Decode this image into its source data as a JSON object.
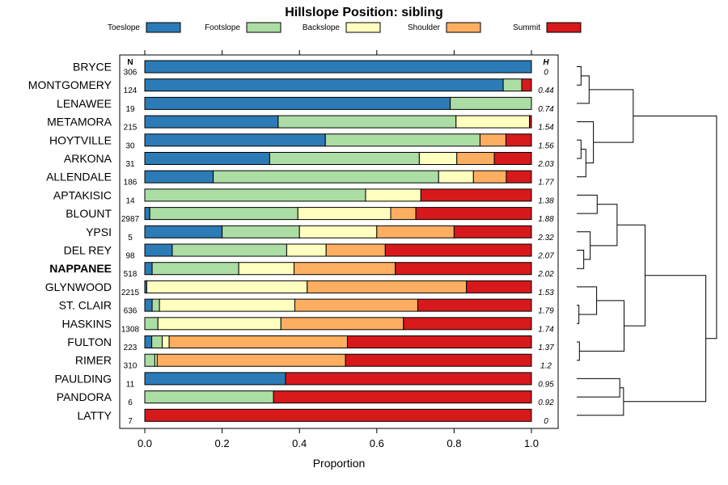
{
  "chart_data": {
    "type": "bar",
    "stacked": true,
    "orientation": "horizontal",
    "title": "Hillslope Position: sibling",
    "xlabel": "Proportion",
    "xlim": [
      0,
      1
    ],
    "xticks": [
      0.0,
      0.2,
      0.4,
      0.6,
      0.8,
      1.0
    ],
    "xtick_labels": [
      "0.0",
      "0.2",
      "0.4",
      "0.6",
      "0.8",
      "1.0"
    ],
    "n_header": "N",
    "h_header": "H",
    "legend": [
      {
        "name": "Toeslope",
        "color": "#2C7BB6"
      },
      {
        "name": "Footslope",
        "color": "#ABDDA4"
      },
      {
        "name": "Backslope",
        "color": "#FFFFBF"
      },
      {
        "name": "Shoulder",
        "color": "#FDAE61"
      },
      {
        "name": "Summit",
        "color": "#D7191C"
      }
    ],
    "rows": [
      {
        "name": "BRYCE",
        "n": "306",
        "h": "0",
        "bold": false,
        "values": [
          1.0,
          0,
          0,
          0,
          0
        ]
      },
      {
        "name": "MONTGOMERY",
        "n": "124",
        "h": "0.44",
        "bold": false,
        "values": [
          0.927,
          0.048,
          0,
          0,
          0.025
        ]
      },
      {
        "name": "LENAWEE",
        "n": "19",
        "h": "0.74",
        "bold": false,
        "values": [
          0.79,
          0.21,
          0,
          0,
          0
        ]
      },
      {
        "name": "METAMORA",
        "n": "215",
        "h": "1.54",
        "bold": false,
        "values": [
          0.345,
          0.46,
          0.19,
          0,
          0.005
        ]
      },
      {
        "name": "HOYTVILLE",
        "n": "30",
        "h": "1.56",
        "bold": false,
        "values": [
          0.467,
          0.4,
          0,
          0.067,
          0.066
        ]
      },
      {
        "name": "ARKONA",
        "n": "31",
        "h": "2.03",
        "bold": false,
        "values": [
          0.323,
          0.387,
          0.097,
          0.097,
          0.096
        ]
      },
      {
        "name": "ALLENDALE",
        "n": "186",
        "h": "1.77",
        "bold": false,
        "values": [
          0.177,
          0.583,
          0.09,
          0.085,
          0.065
        ]
      },
      {
        "name": "APTAKISIC",
        "n": "14",
        "h": "1.38",
        "bold": false,
        "values": [
          0,
          0.571,
          0.143,
          0,
          0.286
        ]
      },
      {
        "name": "BLOUNT",
        "n": "2987",
        "h": "1.88",
        "bold": false,
        "values": [
          0.013,
          0.383,
          0.24,
          0.065,
          0.299
        ]
      },
      {
        "name": "YPSI",
        "n": "5",
        "h": "2.32",
        "bold": false,
        "values": [
          0.2,
          0.2,
          0.2,
          0.2,
          0.2
        ]
      },
      {
        "name": "DEL REY",
        "n": "98",
        "h": "2.07",
        "bold": false,
        "values": [
          0.071,
          0.296,
          0.102,
          0.153,
          0.378
        ]
      },
      {
        "name": "NAPPANEE",
        "n": "518",
        "h": "2.02",
        "bold": true,
        "values": [
          0.019,
          0.224,
          0.143,
          0.262,
          0.352
        ]
      },
      {
        "name": "GLYNWOOD",
        "n": "2215",
        "h": "1.53",
        "bold": false,
        "values": [
          0.005,
          0,
          0.415,
          0.412,
          0.168
        ]
      },
      {
        "name": "ST. CLAIR",
        "n": "636",
        "h": "1.79",
        "bold": false,
        "values": [
          0.019,
          0.019,
          0.35,
          0.318,
          0.294
        ]
      },
      {
        "name": "HASKINS",
        "n": "1308",
        "h": "1.74",
        "bold": false,
        "values": [
          0,
          0.034,
          0.318,
          0.317,
          0.331
        ]
      },
      {
        "name": "FULTON",
        "n": "223",
        "h": "1.37",
        "bold": false,
        "values": [
          0.018,
          0.027,
          0.018,
          0.461,
          0.476
        ]
      },
      {
        "name": "RIMER",
        "n": "310",
        "h": "1.2",
        "bold": false,
        "values": [
          0,
          0.026,
          0.006,
          0.487,
          0.481
        ]
      },
      {
        "name": "PAULDING",
        "n": "11",
        "h": "0.95",
        "bold": false,
        "values": [
          0.364,
          0,
          0,
          0,
          0.636
        ]
      },
      {
        "name": "PANDORA",
        "n": "6",
        "h": "0.92",
        "bold": false,
        "values": [
          0,
          0.333,
          0,
          0,
          0.667
        ]
      },
      {
        "name": "LATTY",
        "n": "7",
        "h": "0",
        "bold": false,
        "values": [
          0,
          0,
          0,
          0,
          1.0
        ]
      }
    ],
    "dendrogram": [
      {
        "a": 0,
        "b": 1,
        "h": 0.08
      },
      {
        "a": "c0",
        "b": 2,
        "h": 0.23
      },
      {
        "a": 4,
        "b": 5,
        "h": 0.08
      },
      {
        "a": "c2",
        "b": 6,
        "h": 0.17
      },
      {
        "a": 3,
        "b": "c3",
        "h": 0.31
      },
      {
        "a": "c1",
        "b": "c4",
        "h": 1.05
      },
      {
        "a": 8,
        "b": 7,
        "h": 0.38
      },
      {
        "a": 10,
        "b": 11,
        "h": 0.13
      },
      {
        "a": 9,
        "b": "c7",
        "h": 0.25
      },
      {
        "a": "c6",
        "b": "c8",
        "h": 0.75
      },
      {
        "a": 13,
        "b": 14,
        "h": 0.04
      },
      {
        "a": 12,
        "b": "c10",
        "h": 0.37
      },
      {
        "a": 15,
        "b": 16,
        "h": 0.05
      },
      {
        "a": "c11",
        "b": "c12",
        "h": 0.88
      },
      {
        "a": "c9",
        "b": "c13",
        "h": 1.27
      },
      {
        "a": 18,
        "b": 17,
        "h": 0.8
      },
      {
        "a": "c15",
        "b": 19,
        "h": 0.87
      },
      {
        "a": "c14",
        "b": "c16",
        "h": 2.4
      },
      {
        "a": "c5",
        "b": "c17",
        "h": 2.6
      }
    ]
  }
}
